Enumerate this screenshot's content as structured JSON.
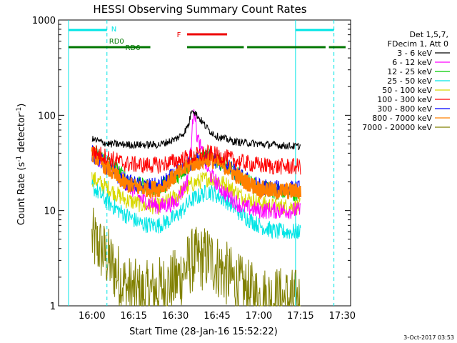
{
  "chart_data": {
    "type": "line",
    "title": "HESSI Observing Summary Count Rates",
    "xlabel": "Start Time (28-Jan-16 15:52:22)",
    "ylabel": "Count Rate (s",
    "ylabel_sup": "-1",
    "ylabel_mid": " detector",
    "ylabel_end": ")",
    "yscale": "log",
    "ylim": [
      1,
      1000
    ],
    "xlim_minutes": [
      15.8,
      17.55
    ],
    "x_ticks": [
      {
        "label": "16:00",
        "h": 16.0
      },
      {
        "label": "16:15",
        "h": 16.25
      },
      {
        "label": "16:30",
        "h": 16.5
      },
      {
        "label": "16:45",
        "h": 16.75
      },
      {
        "label": "17:00",
        "h": 17.0
      },
      {
        "label": "17:15",
        "h": 17.25
      },
      {
        "label": "17:30",
        "h": 17.5
      }
    ],
    "y_ticks": [
      {
        "label": "1000",
        "v": 1000
      },
      {
        "label": "100",
        "v": 100
      },
      {
        "label": "10",
        "v": 10
      },
      {
        "label": "1",
        "v": 1
      }
    ],
    "legend_header": [
      "Det 1,5,7,",
      "FDecim 1, Att 0"
    ],
    "series": [
      {
        "name": "3 - 6 keV",
        "color": "#000000",
        "points": [
          [
            16.0,
            56
          ],
          [
            16.1,
            50
          ],
          [
            16.25,
            49
          ],
          [
            16.4,
            49
          ],
          [
            16.5,
            56
          ],
          [
            16.55,
            65
          ],
          [
            16.58,
            80
          ],
          [
            16.6,
            120
          ],
          [
            16.62,
            105
          ],
          [
            16.65,
            90
          ],
          [
            16.7,
            70
          ],
          [
            16.75,
            60
          ],
          [
            16.85,
            53
          ],
          [
            17.0,
            50
          ],
          [
            17.15,
            48
          ],
          [
            17.25,
            47
          ]
        ]
      },
      {
        "name": "6 - 12 keV",
        "color": "#ff00ff",
        "points": [
          [
            16.0,
            40
          ],
          [
            16.1,
            30
          ],
          [
            16.2,
            20
          ],
          [
            16.3,
            13
          ],
          [
            16.4,
            11
          ],
          [
            16.5,
            12
          ],
          [
            16.57,
            20
          ],
          [
            16.6,
            60
          ],
          [
            16.61,
            140
          ],
          [
            16.63,
            60
          ],
          [
            16.67,
            35
          ],
          [
            16.7,
            25
          ],
          [
            16.8,
            15
          ],
          [
            16.9,
            11
          ],
          [
            17.0,
            10
          ],
          [
            17.1,
            10
          ],
          [
            17.25,
            10
          ]
        ]
      },
      {
        "name": "12 - 25 keV",
        "color": "#00cc00",
        "points": [
          [
            16.0,
            42
          ],
          [
            16.1,
            32
          ],
          [
            16.2,
            22
          ],
          [
            16.3,
            18
          ],
          [
            16.4,
            17
          ],
          [
            16.5,
            22
          ],
          [
            16.6,
            32
          ],
          [
            16.7,
            38
          ],
          [
            16.8,
            30
          ],
          [
            16.9,
            22
          ],
          [
            17.0,
            17
          ],
          [
            17.1,
            16
          ],
          [
            17.25,
            15
          ]
        ]
      },
      {
        "name": "25 - 50 keV",
        "color": "#00e5e5",
        "points": [
          [
            16.0,
            18
          ],
          [
            16.1,
            12
          ],
          [
            16.2,
            9
          ],
          [
            16.3,
            7.2
          ],
          [
            16.4,
            7
          ],
          [
            16.5,
            8.5
          ],
          [
            16.6,
            13
          ],
          [
            16.7,
            16
          ],
          [
            16.8,
            13
          ],
          [
            16.9,
            9
          ],
          [
            17.0,
            7
          ],
          [
            17.1,
            6
          ],
          [
            17.25,
            6
          ]
        ]
      },
      {
        "name": "50 - 100 keV",
        "color": "#d8d800",
        "points": [
          [
            16.0,
            22
          ],
          [
            16.1,
            17
          ],
          [
            16.2,
            13
          ],
          [
            16.3,
            11.5
          ],
          [
            16.4,
            11
          ],
          [
            16.5,
            14
          ],
          [
            16.6,
            19
          ],
          [
            16.7,
            22
          ],
          [
            16.8,
            19
          ],
          [
            16.9,
            14
          ],
          [
            17.0,
            12
          ],
          [
            17.1,
            11
          ],
          [
            17.25,
            11
          ]
        ]
      },
      {
        "name": "100 - 300 keV",
        "color": "#ff0000",
        "points": [
          [
            16.0,
            42
          ],
          [
            16.1,
            36
          ],
          [
            16.2,
            31
          ],
          [
            16.3,
            30
          ],
          [
            16.4,
            30
          ],
          [
            16.5,
            33
          ],
          [
            16.6,
            37
          ],
          [
            16.7,
            40
          ],
          [
            16.8,
            36
          ],
          [
            16.9,
            32
          ],
          [
            17.0,
            30
          ],
          [
            17.1,
            29
          ],
          [
            17.25,
            29
          ]
        ]
      },
      {
        "name": "300 - 800 keV",
        "color": "#0000ff",
        "points": [
          [
            16.0,
            40
          ],
          [
            16.1,
            28
          ],
          [
            16.2,
            20
          ],
          [
            16.3,
            18
          ],
          [
            16.4,
            18
          ],
          [
            16.5,
            24
          ],
          [
            16.6,
            32
          ],
          [
            16.7,
            36
          ],
          [
            16.8,
            30
          ],
          [
            16.9,
            22
          ],
          [
            17.0,
            18
          ],
          [
            17.1,
            17
          ],
          [
            17.25,
            17
          ]
        ]
      },
      {
        "name": "800 - 7000 keV",
        "color": "#ff8000",
        "points": [
          [
            16.0,
            40
          ],
          [
            16.1,
            27
          ],
          [
            16.2,
            19
          ],
          [
            16.3,
            17
          ],
          [
            16.4,
            17
          ],
          [
            16.5,
            23
          ],
          [
            16.6,
            31
          ],
          [
            16.7,
            35
          ],
          [
            16.8,
            29
          ],
          [
            16.9,
            21
          ],
          [
            17.0,
            17
          ],
          [
            17.1,
            16
          ],
          [
            17.25,
            16
          ]
        ]
      },
      {
        "name": "7000 - 20000 keV",
        "color": "#808000",
        "points": [
          [
            16.0,
            5
          ],
          [
            16.05,
            4
          ],
          [
            16.1,
            3
          ],
          [
            16.2,
            1.6
          ],
          [
            16.3,
            1.3
          ],
          [
            16.4,
            1.5
          ],
          [
            16.5,
            1.8
          ],
          [
            16.6,
            3
          ],
          [
            16.7,
            3.2
          ],
          [
            16.8,
            2.2
          ],
          [
            16.9,
            1.5
          ],
          [
            17.0,
            1.2
          ],
          [
            17.1,
            1.2
          ],
          [
            17.25,
            1.1
          ]
        ]
      }
    ],
    "annotations": {
      "n_label": "N",
      "f_label": "F",
      "rd0_label": "RD0",
      "rd6_label": "RD6",
      "n_color": "#00e5e5",
      "f_color": "#ee0000",
      "rd_color": "#007700",
      "cyan_segments": [
        [
          15.86,
          16.09
        ],
        [
          17.22,
          17.45
        ]
      ],
      "green_segments": [
        [
          15.86,
          16.35
        ],
        [
          16.57,
          16.91
        ],
        [
          16.93,
          17.4
        ],
        [
          17.42,
          17.52
        ]
      ],
      "red_segment": [
        16.57,
        16.81
      ]
    },
    "timestamp": "3-Oct-2017 03:53"
  }
}
